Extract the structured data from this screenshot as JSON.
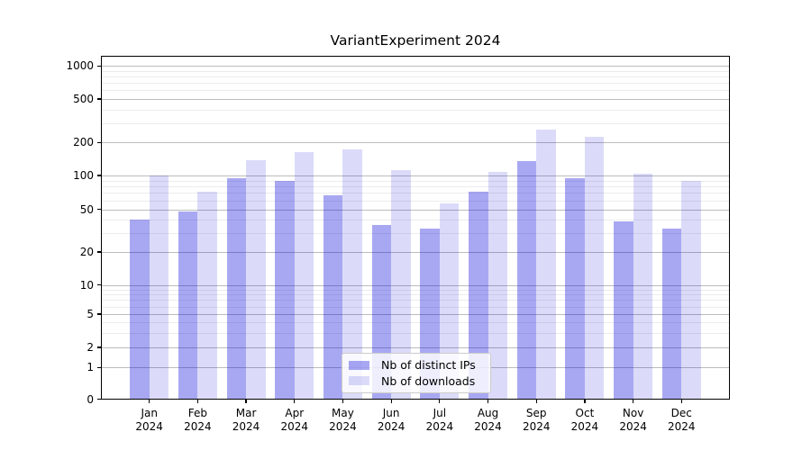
{
  "chart_data": {
    "type": "bar",
    "title": "VariantExperiment 2024",
    "categories": [
      "Jan",
      "Feb",
      "Mar",
      "Apr",
      "May",
      "Jun",
      "Jul",
      "Aug",
      "Sep",
      "Oct",
      "Nov",
      "Dec"
    ],
    "category_year": "2024",
    "series": [
      {
        "name": "Nb of distinct IPs",
        "color": "rgba(0,0,216,0.34)",
        "color_hex_on_white": "#a9a9f2",
        "values": [
          40,
          48,
          95,
          90,
          67,
          36,
          33,
          72,
          135,
          95,
          39,
          33
        ]
      },
      {
        "name": "Nb of downloads",
        "color": "rgba(0,0,216,0.14)",
        "color_hex_on_white": "#dbdbf8",
        "values": [
          100,
          72,
          138,
          162,
          172,
          113,
          57,
          108,
          260,
          224,
          104,
          89
        ]
      }
    ],
    "xlabel": "",
    "ylabel": "",
    "yscale": "symlog",
    "yticks": [
      0,
      1,
      2,
      5,
      10,
      20,
      50,
      100,
      200,
      500,
      1000
    ],
    "ylim": [
      0,
      1250
    ],
    "grid": true,
    "legend_position": "lower center inside plot"
  }
}
